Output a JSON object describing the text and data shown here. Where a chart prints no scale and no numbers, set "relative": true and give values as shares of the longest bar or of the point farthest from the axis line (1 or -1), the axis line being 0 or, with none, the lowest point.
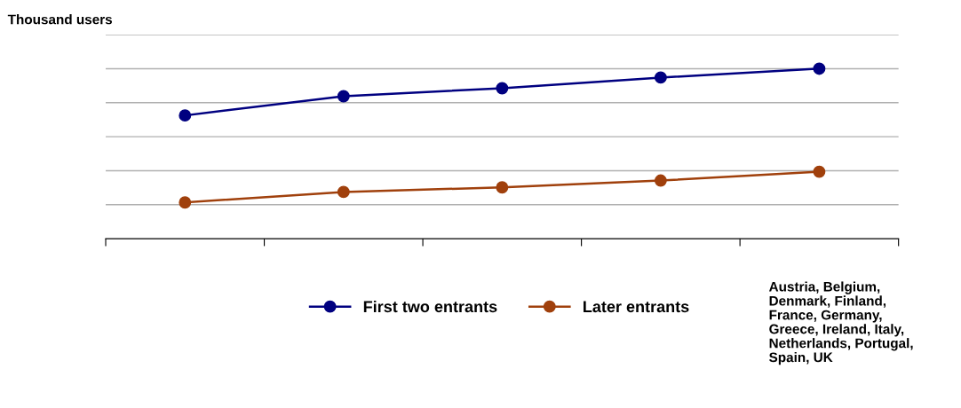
{
  "chart_data": {
    "type": "line",
    "ylabel": "Thousand users",
    "relative": true,
    "categories": [
      null,
      null,
      null,
      null,
      null
    ],
    "series": [
      {
        "name": "First two entrants",
        "color": "#000080",
        "values": [
          0.725,
          0.838,
          0.885,
          0.948,
          1.0
        ]
      },
      {
        "name": "Later entrants",
        "color": "#a0400c",
        "values": [
          0.213,
          0.275,
          0.302,
          0.342,
          0.394
        ]
      }
    ],
    "marker": "circle",
    "line_style": "solid",
    "grid": "y",
    "legend": "bottom",
    "annotations": [
      "Austria, Belgium,\nDenmark, Finland,\nFrance, Germany,\nGreece, Ireland, Italy,\nNetherlands, Portugal,\nSpain, UK"
    ]
  }
}
